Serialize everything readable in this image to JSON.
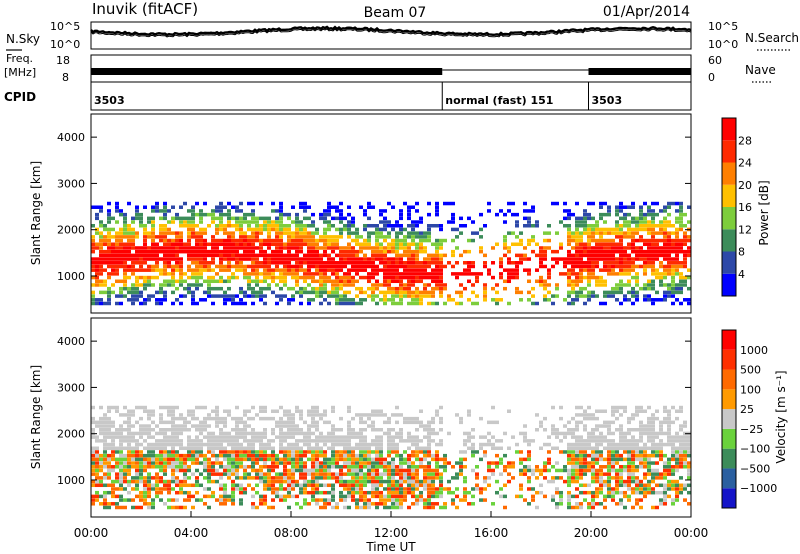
{
  "header": {
    "station": "Inuvik (fitACF)",
    "beam": "Beam 07",
    "date": "01/Apr/2014"
  },
  "noise_panel": {
    "left_label": "N.Sky",
    "right_label": "N.Search",
    "left_ticks": [
      "10^5",
      "10^0"
    ],
    "right_ticks": [
      "10^5",
      "10^0"
    ]
  },
  "freq_panel": {
    "left_label_top": "Freq.",
    "left_label_unit": "[MHz]",
    "left_ticks": [
      "18",
      "8"
    ],
    "right_label": "Nave",
    "right_ticks": [
      "60",
      "0"
    ]
  },
  "cpid_panel": {
    "label": "CPID",
    "segments": [
      {
        "text": "3503",
        "start_hour": 0
      },
      {
        "text": "normal (fast) 151",
        "start_hour": 14.05
      },
      {
        "text": "3503",
        "start_hour": 19.9
      }
    ]
  },
  "colors": {
    "power": [
      "#0000ff",
      "#2d48a8",
      "#3c8c5a",
      "#7dcd3c",
      "#ffc000",
      "#ff7f00",
      "#ff2a00",
      "#ff0000"
    ],
    "velocity": [
      "#1414c8",
      "#2a5fa0",
      "#3c8c5a",
      "#6ad23c",
      "#c8c8c8",
      "#ff9a00",
      "#ff6a00",
      "#ff3000",
      "#ff0000"
    ]
  },
  "chart_data": [
    {
      "type": "heatmap",
      "title": "Power",
      "ylabel": "Slant Range [km]",
      "ylim": [
        200,
        4500
      ],
      "yticks": [
        "1000",
        "2000",
        "3000",
        "4000"
      ],
      "colorbar_label": "Power [dB]",
      "colorbar_ticks": [
        "4",
        "8",
        "12",
        "16",
        "20",
        "24",
        "28"
      ]
    },
    {
      "type": "heatmap",
      "title": "Velocity",
      "ylabel": "Slant Range [km]",
      "ylim": [
        200,
        4500
      ],
      "yticks": [
        "1000",
        "2000",
        "3000",
        "4000"
      ],
      "colorbar_label": "Velocity [m s⁻¹]",
      "colorbar_ticks": [
        "1000",
        "500",
        "100",
        "25",
        "−25",
        "−100",
        "−500",
        "−1000"
      ]
    }
  ],
  "x_axis": {
    "label": "Time UT",
    "ticks": [
      "00:00",
      "04:00",
      "08:00",
      "12:00",
      "16:00",
      "20:00",
      "00:00"
    ],
    "range_hours": [
      0,
      24
    ]
  }
}
